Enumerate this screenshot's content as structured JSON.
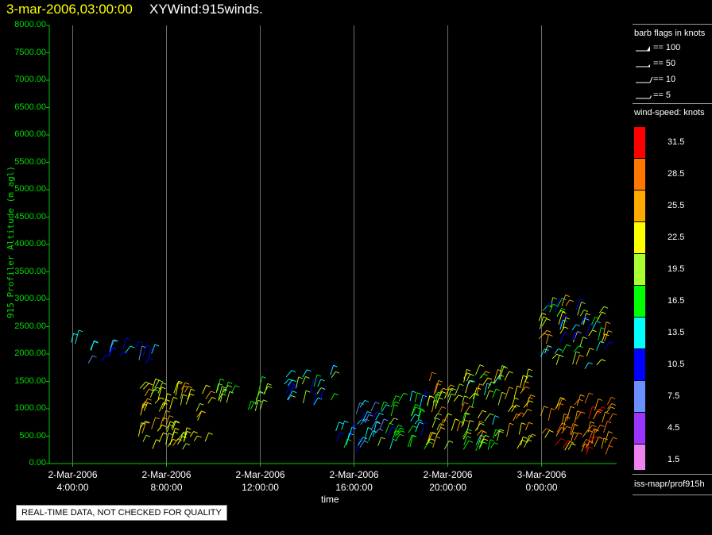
{
  "header": {
    "date_time": "3-mar-2006,03:00:00",
    "product": "XYWind:915winds."
  },
  "footer": {
    "qc_note": "REAL-TIME DATA, NOT CHECKED FOR QUALITY",
    "source_path": "iss-mapr/prof915h"
  },
  "legend": {
    "barb_title": "barb flags in knots",
    "barbs": [
      {
        "label": "== 100",
        "kind": "pennant"
      },
      {
        "label": "== 50",
        "kind": "half-pennant"
      },
      {
        "label": "== 10",
        "kind": "full"
      },
      {
        "label": "== 5",
        "kind": "half"
      }
    ],
    "speed_title": "wind-speed: knots",
    "color_bins": [
      {
        "label": "31.5",
        "color": "#ff0000"
      },
      {
        "label": "28.5",
        "color": "#ff7700"
      },
      {
        "label": "25.5",
        "color": "#ffaa00"
      },
      {
        "label": "22.5",
        "color": "#ffff00"
      },
      {
        "label": "19.5",
        "color": "#aaff33"
      },
      {
        "label": "16.5",
        "color": "#00ff00"
      },
      {
        "label": "13.5",
        "color": "#00ffff"
      },
      {
        "label": "10.5",
        "color": "#0000ff"
      },
      {
        "label": "7.5",
        "color": "#6a8fff"
      },
      {
        "label": "4.5",
        "color": "#9a35ff"
      },
      {
        "label": "1.5",
        "color": "#ee82ee"
      }
    ]
  },
  "chart_data": {
    "type": "scatter",
    "mark": "wind-barb",
    "xlabel": "time",
    "ylabel": "915 Profiler Altitude (m agl)",
    "x_unit": "hours since 2-Mar-2006 00:00",
    "xlim": [
      3.0,
      27.2
    ],
    "ylim": [
      0,
      8000
    ],
    "y_ticks": [
      "0.00",
      "500.00",
      "1000.00",
      "1500.00",
      "2000.00",
      "2500.00",
      "3000.00",
      "3500.00",
      "4000.00",
      "4500.00",
      "5000.00",
      "5500.00",
      "6000.00",
      "6500.00",
      "7000.00",
      "7500.00",
      "8000.00"
    ],
    "x_ticks": [
      {
        "x": 4,
        "date": "2-Mar-2006",
        "time": "4:00:00"
      },
      {
        "x": 8,
        "date": "2-Mar-2006",
        "time": "8:00:00"
      },
      {
        "x": 12,
        "date": "2-Mar-2006",
        "time": "12:00:00"
      },
      {
        "x": 16,
        "date": "2-Mar-2006",
        "time": "16:00:00"
      },
      {
        "x": 20,
        "date": "2-Mar-2006",
        "time": "20:00:00"
      },
      {
        "x": 24,
        "date": "3-Mar-2006",
        "time": "0:00:00"
      }
    ],
    "grid": "vertical",
    "clusters": [
      {
        "t0": 3.9,
        "t1": 4.3,
        "z0": 2000,
        "z1": 2350,
        "speed": 14,
        "spread": 2
      },
      {
        "t0": 4.5,
        "t1": 7.4,
        "z0": 1750,
        "z1": 2100,
        "speed": 11,
        "spread": 4
      },
      {
        "t0": 6.8,
        "t1": 10.0,
        "z0": 250,
        "z1": 1400,
        "speed": 23,
        "spread": 3
      },
      {
        "t0": 10.0,
        "t1": 12.4,
        "z0": 900,
        "z1": 1350,
        "speed": 18,
        "spread": 3
      },
      {
        "t0": 12.9,
        "t1": 15.2,
        "z0": 1050,
        "z1": 1650,
        "speed": 15,
        "spread": 6
      },
      {
        "t0": 15.0,
        "t1": 16.0,
        "z0": 250,
        "z1": 650,
        "speed": 13,
        "spread": 4
      },
      {
        "t0": 16.0,
        "t1": 17.5,
        "z0": 200,
        "z1": 1050,
        "speed": 10,
        "spread": 5
      },
      {
        "t0": 17.0,
        "t1": 19.0,
        "z0": 250,
        "z1": 1150,
        "speed": 15,
        "spread": 4
      },
      {
        "t0": 19.0,
        "t1": 20.8,
        "z0": 250,
        "z1": 1600,
        "speed": 23,
        "spread": 6
      },
      {
        "t0": 20.6,
        "t1": 22.2,
        "z0": 200,
        "z1": 1700,
        "speed": 20,
        "spread": 6
      },
      {
        "t0": 22.2,
        "t1": 23.4,
        "z0": 250,
        "z1": 1550,
        "speed": 24,
        "spread": 4
      },
      {
        "t0": 23.8,
        "t1": 26.7,
        "z0": 1700,
        "z1": 2900,
        "speed": 18,
        "spread": 9
      },
      {
        "t0": 23.8,
        "t1": 26.9,
        "z0": 150,
        "z1": 1200,
        "speed": 27,
        "spread": 4
      }
    ]
  }
}
